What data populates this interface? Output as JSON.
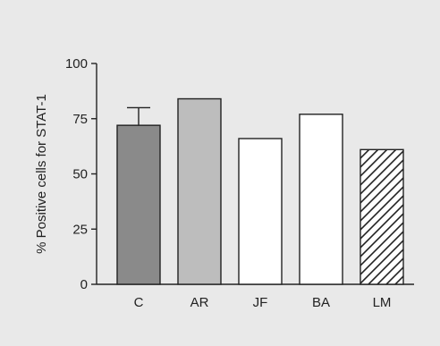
{
  "chart_data": {
    "type": "bar",
    "ylabel": "% Positive cells for STAT-1",
    "xlabel": "",
    "title": "",
    "ylim": [
      0,
      100
    ],
    "yticks": [
      0,
      25,
      50,
      75,
      100
    ],
    "grid": false,
    "categories": [
      "C",
      "AR",
      "JF",
      "BA",
      "LM"
    ],
    "values": [
      72,
      84,
      66,
      77,
      61
    ],
    "error_upper": [
      80,
      null,
      null,
      null,
      null
    ],
    "fills": [
      "#8a8a8a",
      "#bdbdbd",
      "#ffffff",
      "#ffffff",
      "hatch"
    ],
    "colors": {
      "background": "#e9e9e9",
      "stroke": "#222222"
    }
  }
}
